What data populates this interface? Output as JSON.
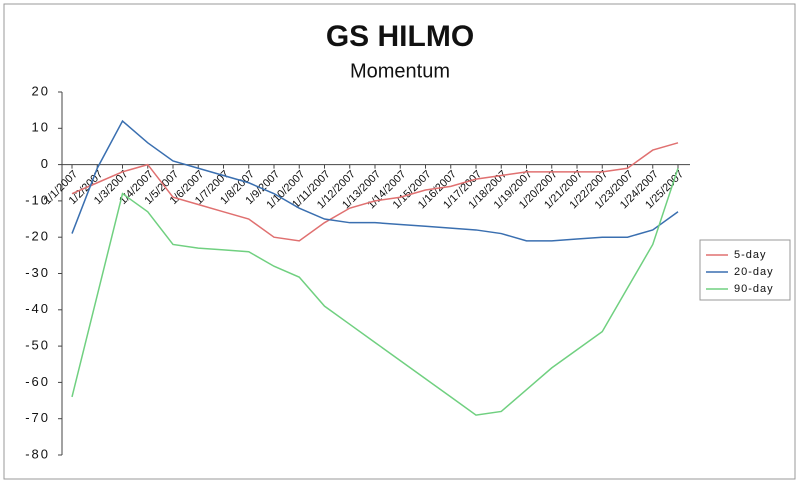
{
  "chart_data": {
    "type": "line",
    "title": "GS HILMO",
    "subtitle": "Momentum",
    "categories": [
      "1/1/2007",
      "1/2/2007",
      "1/3/2007",
      "1/4/2007",
      "1/5/2007",
      "1/6/2007",
      "1/7/2007",
      "1/8/2007",
      "1/9/2007",
      "1/10/2007",
      "1/11/2007",
      "1/12/2007",
      "1/13/2007",
      "1/14/2007",
      "1/15/2007",
      "1/16/2007",
      "1/17/2007",
      "1/18/2007",
      "1/19/2007",
      "1/20/2007",
      "1/21/2007",
      "1/22/2007",
      "1/23/2007",
      "1/24/2007",
      "1/25/2007"
    ],
    "series": [
      {
        "name": "5-day",
        "color": "#e07070",
        "values": [
          -8,
          -5,
          -2,
          0,
          -9,
          -11,
          -13,
          -15,
          -20,
          -21,
          -16,
          -12,
          -10,
          -9,
          -7,
          -6,
          -4,
          -3,
          -2,
          -2,
          -2,
          -2,
          -1,
          4,
          6
        ]
      },
      {
        "name": "20-day",
        "color": "#3a6fb0",
        "values": [
          -19,
          -1,
          12,
          6,
          1,
          -1,
          -3,
          -5,
          -8,
          -12,
          -15,
          -16,
          -16,
          -16.5,
          -17,
          -17.5,
          -18,
          -19,
          -21,
          -21,
          -20.5,
          -20,
          -20,
          -18,
          -13
        ]
      },
      {
        "name": "90-day",
        "color": "#70d080",
        "values": [
          -64,
          -36,
          -8,
          -13,
          -22,
          -23,
          -23.5,
          -24,
          -28,
          -31,
          -39,
          -44,
          -49,
          -54,
          -59,
          -64,
          -69,
          -68,
          -62,
          -56,
          -51,
          -46,
          -34,
          -22,
          -1
        ]
      }
    ],
    "ylim": [
      -80,
      20
    ],
    "yticks": [
      20,
      10,
      0,
      -10,
      -20,
      -30,
      -40,
      -50,
      -60,
      -70,
      -80
    ],
    "legend": "right"
  }
}
